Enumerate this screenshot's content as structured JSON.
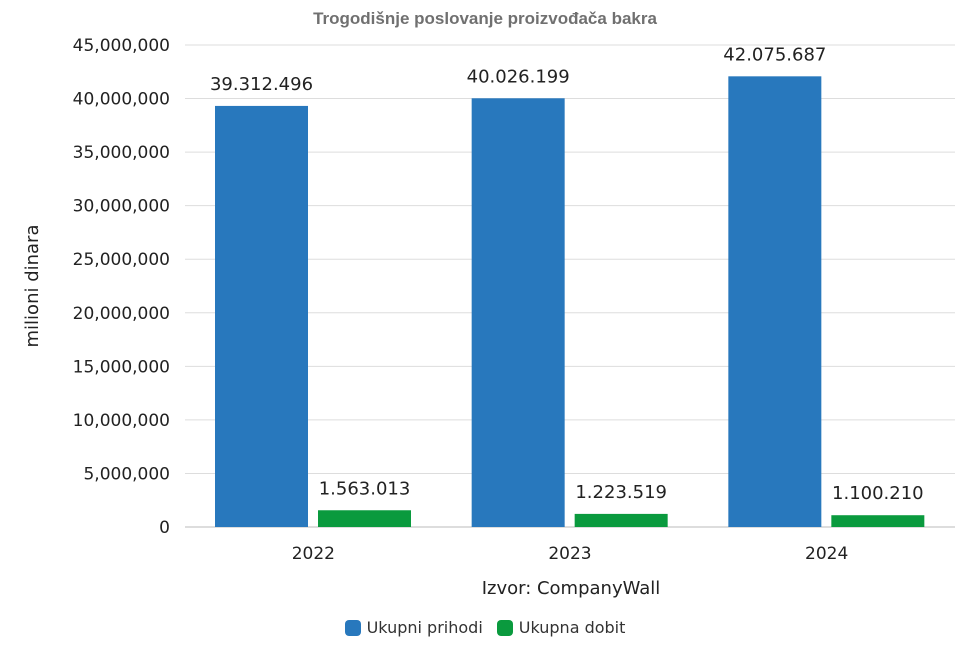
{
  "chart_data": {
    "type": "bar",
    "title": "Trogodišnje poslovanje proizvođača bakra",
    "xlabel": "Izvor: CompanyWall",
    "ylabel": "milioni dinara",
    "categories": [
      "2022",
      "2023",
      "2024"
    ],
    "ylim": [
      0,
      45000000
    ],
    "yticks": [
      0,
      5000000,
      10000000,
      15000000,
      20000000,
      25000000,
      30000000,
      35000000,
      40000000,
      45000000
    ],
    "ytick_labels": [
      "0",
      "5,000,000",
      "10,000,000",
      "15,000,000",
      "20,000,000",
      "25,000,000",
      "30,000,000",
      "35,000,000",
      "40,000,000",
      "45,000,000"
    ],
    "grid": true,
    "legend_position": "bottom",
    "series": [
      {
        "name": "Ukupni prihodi",
        "color": "#2878bd",
        "values": [
          39312496,
          40026199,
          42075687
        ],
        "labels": [
          "39.312.496",
          "40.026.199",
          "42.075.687"
        ]
      },
      {
        "name": "Ukupna dobit",
        "color": "#0a9a3e",
        "values": [
          1563013,
          1223519,
          1100210
        ],
        "labels": [
          "1.563.013",
          "1.223.519",
          "1.100.210"
        ]
      }
    ]
  }
}
